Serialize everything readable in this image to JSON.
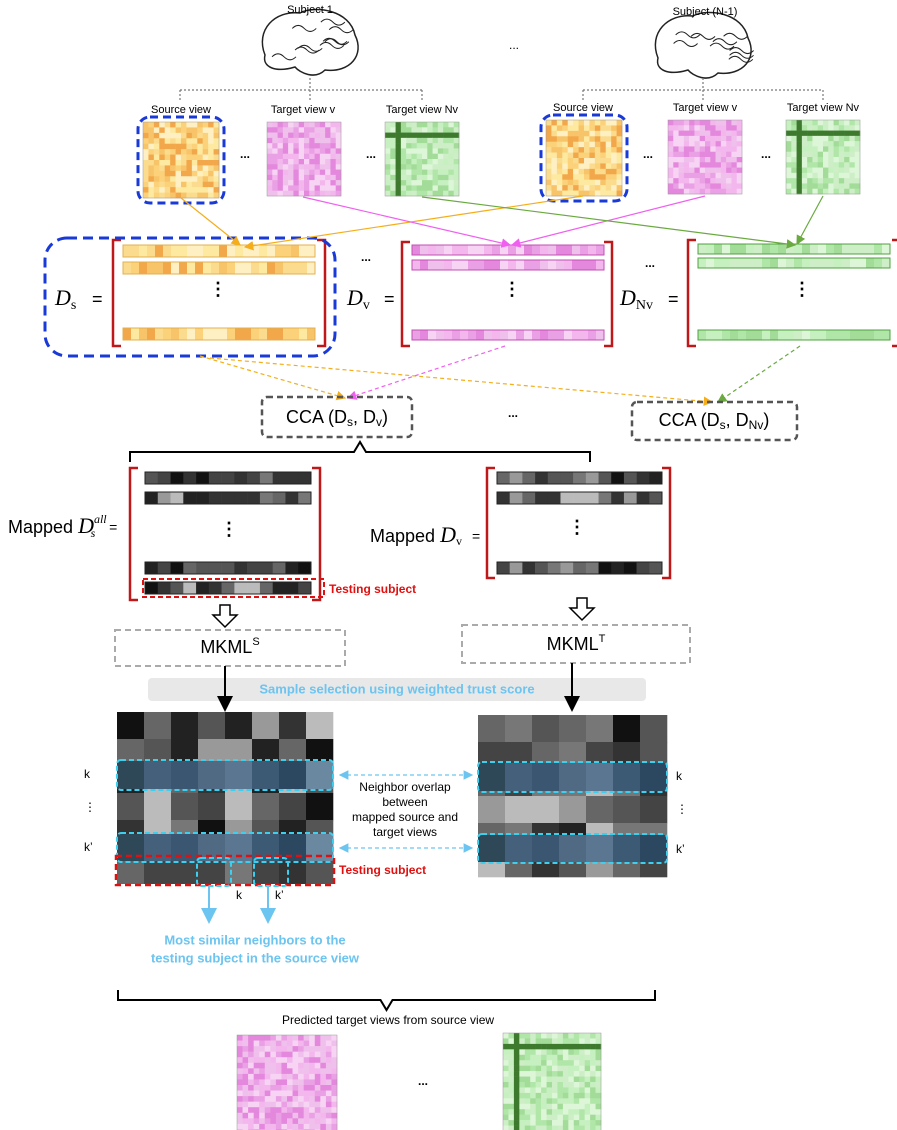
{
  "subjects": [
    "Subject 1",
    "Subject (N-1)"
  ],
  "subjects_ellipsis": "...",
  "view_labels": [
    [
      "Source view",
      "Target view v",
      "Target view Nv"
    ],
    [
      "Source view",
      "Target view v",
      "Target view Nv"
    ]
  ],
  "view_ellipses": [
    "...",
    "...",
    "...",
    "..."
  ],
  "data_matrices": [
    {
      "symbol": "D",
      "sub": "s",
      "equals": "=",
      "dots": "⋮"
    },
    {
      "symbol": "D",
      "sub": "v",
      "equals": "=",
      "dots": "⋮"
    },
    {
      "symbol": "D",
      "sub": "Nv",
      "equals": "=",
      "dots": "⋮"
    }
  ],
  "matrix_ellipses": [
    "...",
    "..."
  ],
  "cca_boxes": [
    {
      "parts": [
        "CCA (D",
        "s",
        ", D",
        "v",
        ")"
      ]
    },
    {
      "parts": [
        "CCA (D",
        "s",
        ", D",
        "Nv",
        ")"
      ]
    }
  ],
  "cca_ellipsis": "...",
  "mapped_source": {
    "prefix": "Mapped ",
    "symbol": "D",
    "sup": "all",
    "sub": "s",
    "equals": " =",
    "dots": "⋮"
  },
  "mapped_target": {
    "prefix": "Mapped ",
    "symbol": "D",
    "sub": "v",
    "equals": "=",
    "dots": "⋮"
  },
  "testing_subject_label": "Testing subject",
  "mkml_boxes": [
    {
      "main": "MKML",
      "sup": "S"
    },
    {
      "main": "MKML",
      "sup": "T"
    }
  ],
  "sample_selection": "Sample selection using weighted trust score",
  "row_labels_left": [
    "k",
    "⋮",
    "k’"
  ],
  "row_labels_right": [
    "k",
    "⋮",
    "k’"
  ],
  "neighbor_overlap": [
    "Neighbor overlap",
    "between",
    "mapped source and",
    "target views"
  ],
  "testing_subject_label_2": "Testing subject",
  "neighbor_markers": [
    "k",
    "k’"
  ],
  "most_similar": [
    "Most similar neighbors to the",
    "testing subject in the source view"
  ],
  "predicted_title": "Predicted target views from source view",
  "predicted_ellipsis": "..."
}
